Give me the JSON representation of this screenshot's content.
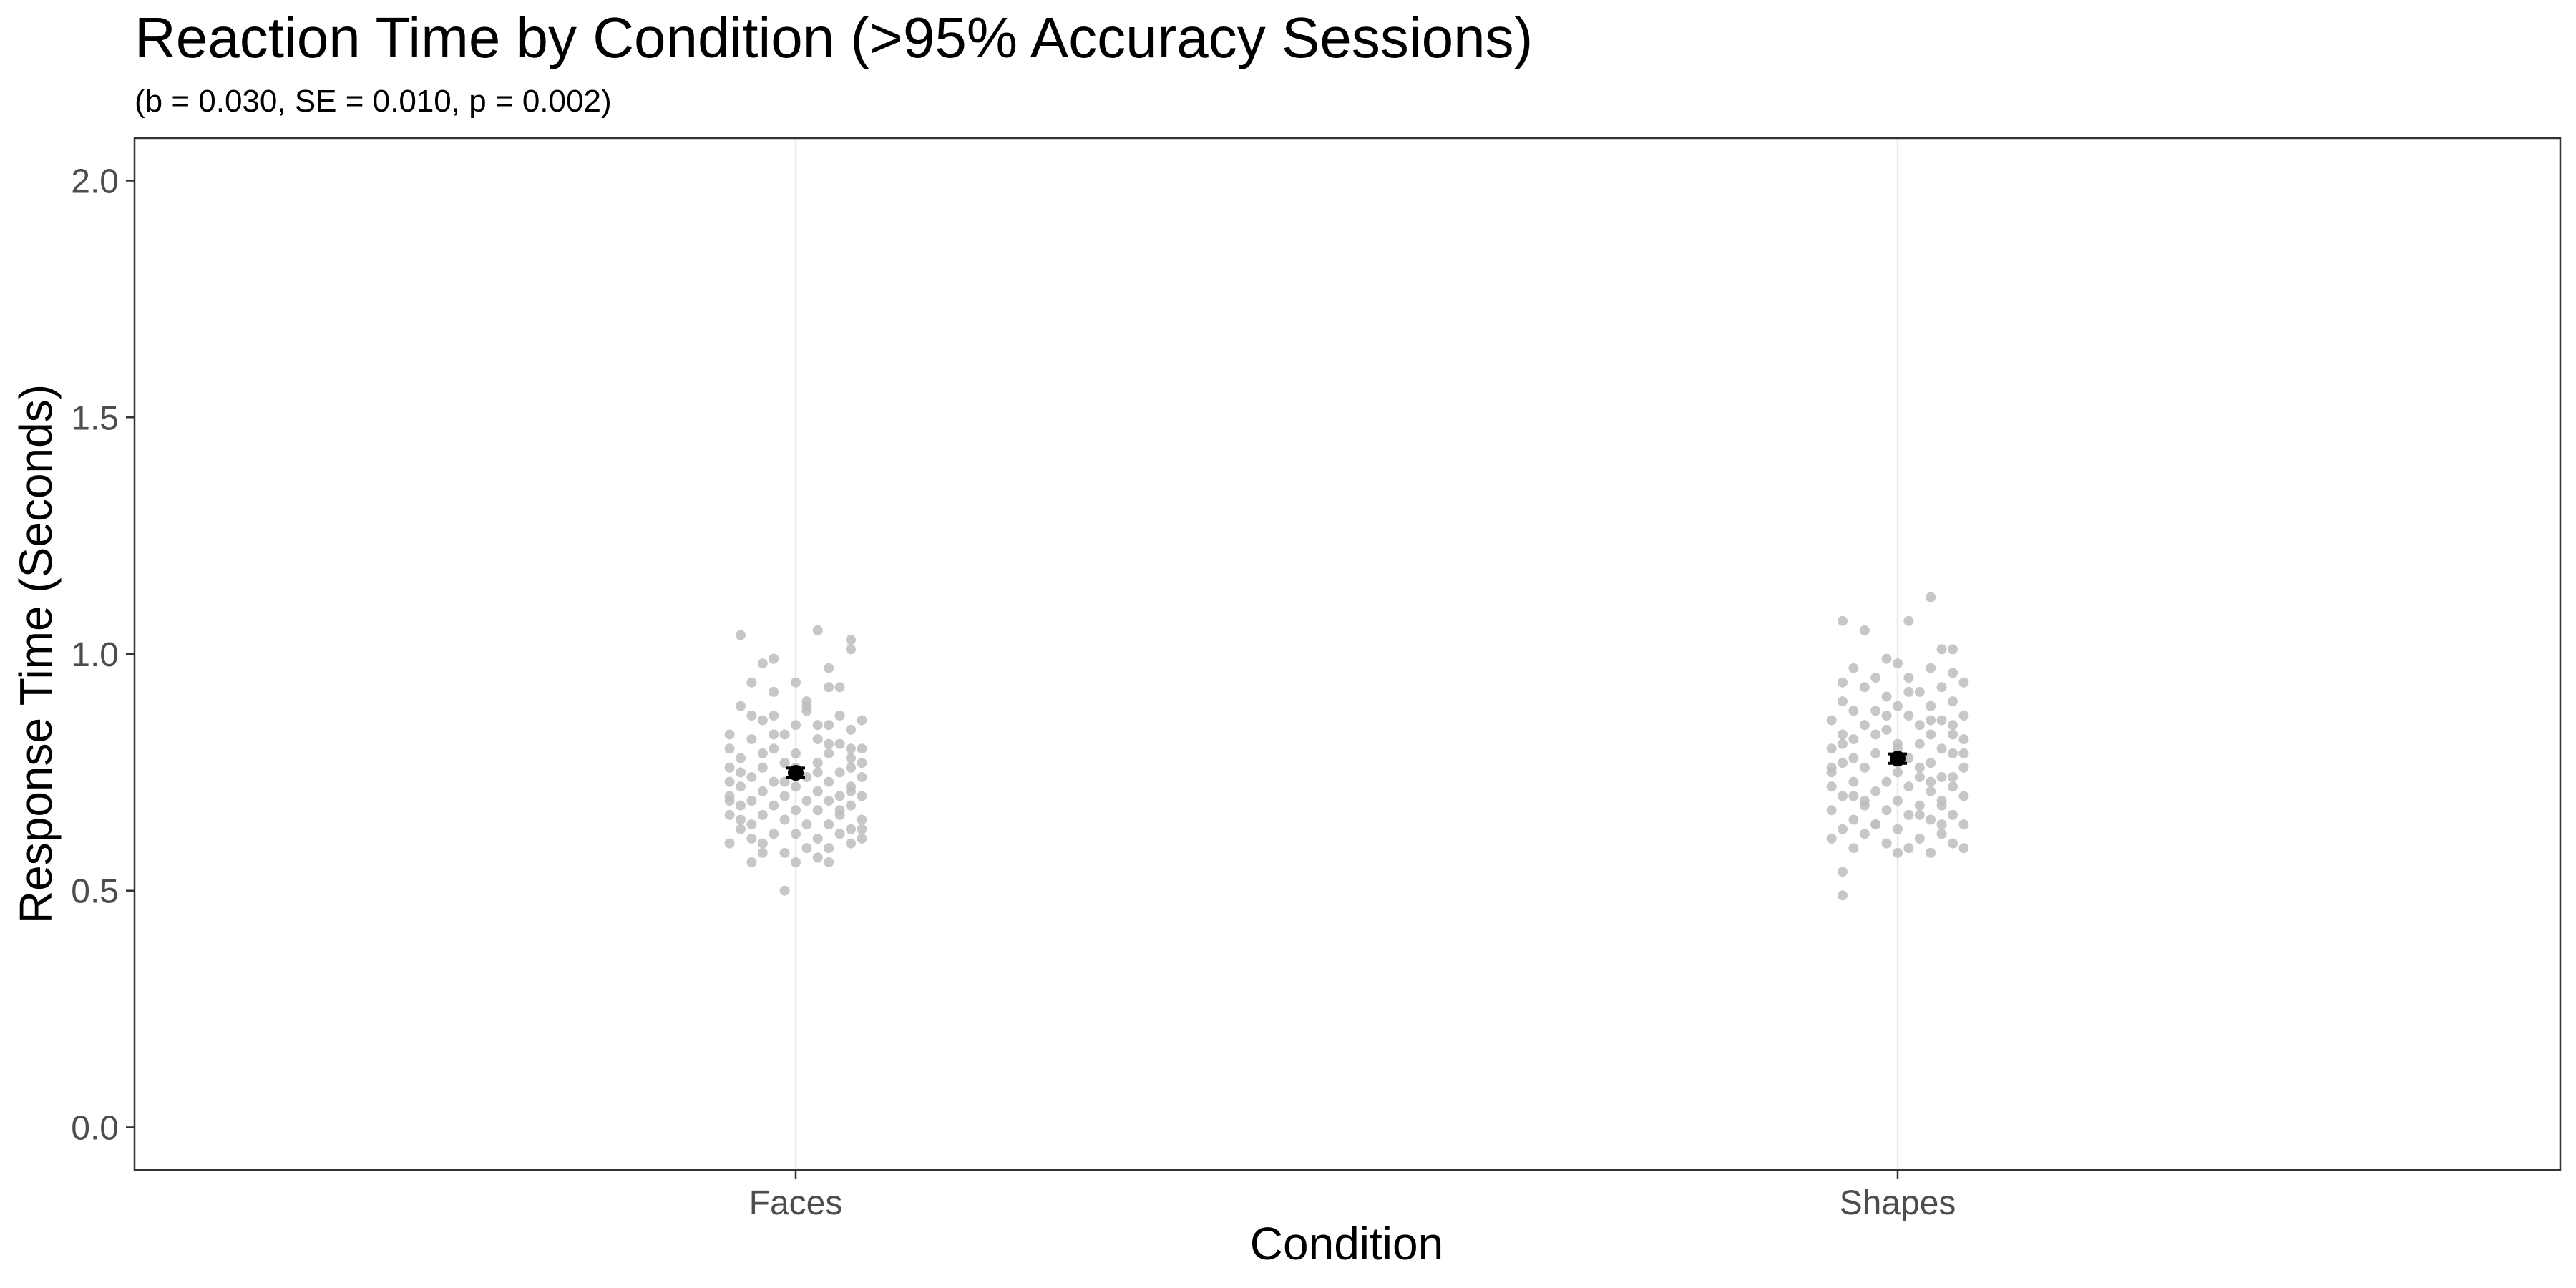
{
  "chart_data": {
    "type": "scatter",
    "title": "Reaction Time by Condition (>95% Accuracy Sessions)",
    "subtitle": "(b = 0.030, SE = 0.010, p = 0.002)",
    "xlabel": "Condition",
    "ylabel": "Response Time (Seconds)",
    "categories": [
      "Faces",
      "Shapes"
    ],
    "ylim": [
      -0.09,
      2.09
    ],
    "yticks": [
      0.0,
      0.5,
      1.0,
      1.5,
      2.0
    ],
    "ytick_labels": [
      "0.0",
      "0.5",
      "1.0",
      "1.5",
      "2.0"
    ],
    "grid": "vertical major gridlines only",
    "point_color": "#bdbdbd",
    "summary_color": "#000000",
    "series": [
      {
        "category": "Faces",
        "mean": 0.749,
        "error_low": 0.739,
        "error_high": 0.759,
        "points": [
          [
            -0.05,
            1.04
          ],
          [
            0.02,
            1.05
          ],
          [
            0.05,
            1.03
          ],
          [
            0.05,
            1.01
          ],
          [
            -0.03,
            0.98
          ],
          [
            -0.02,
            0.99
          ],
          [
            0.03,
            0.97
          ],
          [
            -0.04,
            0.94
          ],
          [
            0.0,
            0.94
          ],
          [
            0.03,
            0.93
          ],
          [
            0.04,
            0.93
          ],
          [
            -0.02,
            0.92
          ],
          [
            -0.05,
            0.89
          ],
          [
            0.01,
            0.89
          ],
          [
            -0.02,
            0.87
          ],
          [
            0.01,
            0.88
          ],
          [
            0.04,
            0.87
          ],
          [
            0.06,
            0.86
          ],
          [
            -0.03,
            0.86
          ],
          [
            0.0,
            0.85
          ],
          [
            0.03,
            0.85
          ],
          [
            0.05,
            0.84
          ],
          [
            -0.06,
            0.83
          ],
          [
            -0.01,
            0.83
          ],
          [
            0.02,
            0.82
          ],
          [
            -0.04,
            0.82
          ],
          [
            0.04,
            0.81
          ],
          [
            0.06,
            0.8
          ],
          [
            -0.06,
            0.8
          ],
          [
            -0.02,
            0.8
          ],
          [
            0.0,
            0.79
          ],
          [
            0.03,
            0.79
          ],
          [
            0.05,
            0.78
          ],
          [
            -0.05,
            0.78
          ],
          [
            -0.01,
            0.77
          ],
          [
            0.02,
            0.77
          ],
          [
            0.05,
            0.76
          ],
          [
            -0.06,
            0.76
          ],
          [
            -0.03,
            0.76
          ],
          [
            0.04,
            0.75
          ],
          [
            -0.04,
            0.74
          ],
          [
            0.01,
            0.74
          ],
          [
            0.06,
            0.74
          ],
          [
            -0.02,
            0.73
          ],
          [
            0.03,
            0.73
          ],
          [
            -0.05,
            0.72
          ],
          [
            0.0,
            0.72
          ],
          [
            0.05,
            0.72
          ],
          [
            -0.03,
            0.71
          ],
          [
            0.02,
            0.71
          ],
          [
            -0.06,
            0.7
          ],
          [
            -0.01,
            0.7
          ],
          [
            0.04,
            0.7
          ],
          [
            0.06,
            0.7
          ],
          [
            -0.04,
            0.69
          ],
          [
            0.01,
            0.69
          ],
          [
            0.03,
            0.69
          ],
          [
            -0.02,
            0.68
          ],
          [
            -0.05,
            0.68
          ],
          [
            0.05,
            0.68
          ],
          [
            0.0,
            0.67
          ],
          [
            0.02,
            0.67
          ],
          [
            -0.03,
            0.66
          ],
          [
            -0.06,
            0.66
          ],
          [
            0.04,
            0.66
          ],
          [
            -0.01,
            0.65
          ],
          [
            0.06,
            0.65
          ],
          [
            -0.04,
            0.64
          ],
          [
            0.01,
            0.64
          ],
          [
            0.03,
            0.64
          ],
          [
            -0.05,
            0.63
          ],
          [
            0.05,
            0.63
          ],
          [
            -0.02,
            0.62
          ],
          [
            0.0,
            0.62
          ],
          [
            0.04,
            0.62
          ],
          [
            -0.04,
            0.61
          ],
          [
            0.02,
            0.61
          ],
          [
            0.06,
            0.61
          ],
          [
            -0.03,
            0.6
          ],
          [
            0.05,
            0.6
          ],
          [
            -0.06,
            0.6
          ],
          [
            0.01,
            0.59
          ],
          [
            0.03,
            0.59
          ],
          [
            -0.01,
            0.58
          ],
          [
            -0.03,
            0.58
          ],
          [
            0.02,
            0.57
          ],
          [
            -0.04,
            0.56
          ],
          [
            0.03,
            0.56
          ],
          [
            0.0,
            0.56
          ],
          [
            -0.01,
            0.5
          ],
          [
            -0.05,
            0.75
          ],
          [
            0.06,
            0.77
          ],
          [
            -0.06,
            0.73
          ],
          [
            0.05,
            0.71
          ],
          [
            -0.02,
            0.83
          ],
          [
            0.02,
            0.85
          ],
          [
            -0.04,
            0.87
          ],
          [
            0.03,
            0.81
          ],
          [
            0.01,
            0.9
          ],
          [
            -0.03,
            0.79
          ],
          [
            0.0,
            0.76
          ],
          [
            0.04,
            0.67
          ],
          [
            -0.05,
            0.65
          ],
          [
            0.06,
            0.63
          ],
          [
            -0.01,
            0.73
          ],
          [
            0.02,
            0.75
          ],
          [
            -0.06,
            0.69
          ],
          [
            0.05,
            0.8
          ]
        ]
      },
      {
        "category": "Shapes",
        "mean": 0.779,
        "error_low": 0.769,
        "error_high": 0.789,
        "points": [
          [
            -0.05,
            1.07
          ],
          [
            0.03,
            1.12
          ],
          [
            -0.03,
            1.05
          ],
          [
            0.01,
            1.07
          ],
          [
            0.04,
            1.01
          ],
          [
            0.05,
            1.01
          ],
          [
            -0.01,
            0.99
          ],
          [
            0.0,
            0.98
          ],
          [
            -0.04,
            0.97
          ],
          [
            0.03,
            0.97
          ],
          [
            0.05,
            0.96
          ],
          [
            -0.02,
            0.95
          ],
          [
            0.01,
            0.95
          ],
          [
            -0.05,
            0.94
          ],
          [
            0.06,
            0.94
          ],
          [
            -0.03,
            0.93
          ],
          [
            0.04,
            0.93
          ],
          [
            0.02,
            0.92
          ],
          [
            -0.01,
            0.91
          ],
          [
            -0.05,
            0.9
          ],
          [
            0.05,
            0.9
          ],
          [
            0.0,
            0.89
          ],
          [
            0.03,
            0.89
          ],
          [
            -0.04,
            0.88
          ],
          [
            -0.02,
            0.88
          ],
          [
            0.06,
            0.87
          ],
          [
            0.01,
            0.87
          ],
          [
            -0.06,
            0.86
          ],
          [
            0.04,
            0.86
          ],
          [
            -0.03,
            0.85
          ],
          [
            0.02,
            0.85
          ],
          [
            0.05,
            0.85
          ],
          [
            -0.01,
            0.84
          ],
          [
            -0.05,
            0.83
          ],
          [
            0.03,
            0.83
          ],
          [
            0.06,
            0.82
          ],
          [
            -0.04,
            0.82
          ],
          [
            0.0,
            0.81
          ],
          [
            0.02,
            0.81
          ],
          [
            -0.06,
            0.8
          ],
          [
            0.04,
            0.8
          ],
          [
            -0.02,
            0.79
          ],
          [
            0.05,
            0.79
          ],
          [
            0.01,
            0.78
          ],
          [
            -0.05,
            0.77
          ],
          [
            0.03,
            0.77
          ],
          [
            -0.03,
            0.76
          ],
          [
            0.06,
            0.76
          ],
          [
            0.0,
            0.75
          ],
          [
            -0.06,
            0.75
          ],
          [
            0.02,
            0.74
          ],
          [
            0.04,
            0.74
          ],
          [
            -0.01,
            0.73
          ],
          [
            -0.04,
            0.73
          ],
          [
            0.05,
            0.72
          ],
          [
            0.01,
            0.72
          ],
          [
            -0.02,
            0.71
          ],
          [
            0.03,
            0.71
          ],
          [
            -0.05,
            0.7
          ],
          [
            0.06,
            0.7
          ],
          [
            0.0,
            0.69
          ],
          [
            -0.03,
            0.69
          ],
          [
            0.02,
            0.68
          ],
          [
            0.04,
            0.68
          ],
          [
            -0.06,
            0.67
          ],
          [
            -0.01,
            0.67
          ],
          [
            0.05,
            0.66
          ],
          [
            0.01,
            0.66
          ],
          [
            -0.04,
            0.65
          ],
          [
            0.03,
            0.65
          ],
          [
            -0.02,
            0.64
          ],
          [
            0.06,
            0.64
          ],
          [
            -0.05,
            0.63
          ],
          [
            0.0,
            0.63
          ],
          [
            0.04,
            0.62
          ],
          [
            -0.03,
            0.62
          ],
          [
            0.02,
            0.61
          ],
          [
            -0.06,
            0.61
          ],
          [
            0.05,
            0.6
          ],
          [
            -0.01,
            0.6
          ],
          [
            0.01,
            0.59
          ],
          [
            -0.04,
            0.59
          ],
          [
            0.03,
            0.58
          ],
          [
            0.0,
            0.58
          ],
          [
            -0.05,
            0.54
          ],
          [
            -0.05,
            0.49
          ],
          [
            0.06,
            0.59
          ],
          [
            -0.02,
            0.83
          ],
          [
            0.03,
            0.86
          ],
          [
            -0.04,
            0.78
          ],
          [
            0.02,
            0.76
          ],
          [
            -0.06,
            0.72
          ],
          [
            0.05,
            0.74
          ],
          [
            0.0,
            0.8
          ],
          [
            -0.03,
            0.68
          ],
          [
            0.04,
            0.69
          ],
          [
            -0.01,
            0.87
          ],
          [
            0.01,
            0.92
          ],
          [
            -0.05,
            0.81
          ],
          [
            0.06,
            0.79
          ],
          [
            0.02,
            0.66
          ],
          [
            -0.02,
            0.64
          ],
          [
            0.03,
            0.73
          ],
          [
            -0.04,
            0.7
          ],
          [
            0.0,
            0.77
          ],
          [
            0.05,
            0.83
          ],
          [
            -0.06,
            0.76
          ],
          [
            0.04,
            0.64
          ]
        ]
      }
    ]
  }
}
